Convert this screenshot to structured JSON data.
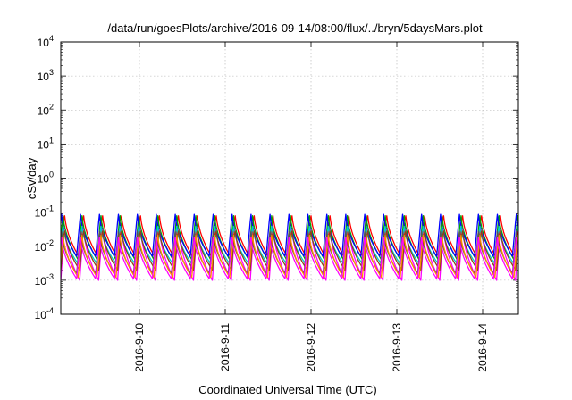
{
  "chart_data": {
    "type": "line",
    "title": "/data/run/goesPlots/archive/2016-09-14/08:00/flux/../bryn/5daysMars.plot",
    "xlabel": "Coordinated Universal Time (UTC)",
    "ylabel": "cSv/day",
    "yscale": "log",
    "ylim": [
      0.0001,
      10000
    ],
    "xlim": [
      "2016-09-09T02:00",
      "2016-09-14T10:00"
    ],
    "grid": true,
    "x_tick_labels": [
      "2016-9-10",
      "2016-9-11",
      "2016-9-12",
      "2016-9-13",
      "2016-9-14"
    ],
    "y_ticks": [
      {
        "mantissa": "10",
        "exp": "-4"
      },
      {
        "mantissa": "10",
        "exp": "-3"
      },
      {
        "mantissa": "10",
        "exp": "-2"
      },
      {
        "mantissa": "10",
        "exp": "-1"
      },
      {
        "mantissa": "10",
        "exp": "0"
      },
      {
        "mantissa": "10",
        "exp": "1"
      },
      {
        "mantissa": "10",
        "exp": "2"
      },
      {
        "mantissa": "10",
        "exp": "3"
      },
      {
        "mantissa": "10",
        "exp": "4"
      }
    ],
    "oscillation_period_hours": 5.3,
    "series": [
      {
        "color": "#ff0000",
        "peak": 0.1,
        "trough": 0.0045
      },
      {
        "color": "#00aa00",
        "peak": 0.095,
        "trough": 0.004
      },
      {
        "color": "#0000ff",
        "peak": 0.095,
        "trough": 0.005
      },
      {
        "color": "#ff00ff",
        "peak": 0.04,
        "trough": 0.001
      },
      {
        "color": "#00cccc",
        "peak": 0.045,
        "trough": 0.003
      },
      {
        "color": "#555555",
        "peak": 0.03,
        "trough": 0.0015
      },
      {
        "color": "#8b4513",
        "peak": 0.035,
        "trough": 0.002
      },
      {
        "color": "#ff8c00",
        "peak": 0.025,
        "trough": 0.0012
      },
      {
        "color": "#ff00ff",
        "peak": 0.02,
        "trough": 0.0011
      }
    ]
  }
}
